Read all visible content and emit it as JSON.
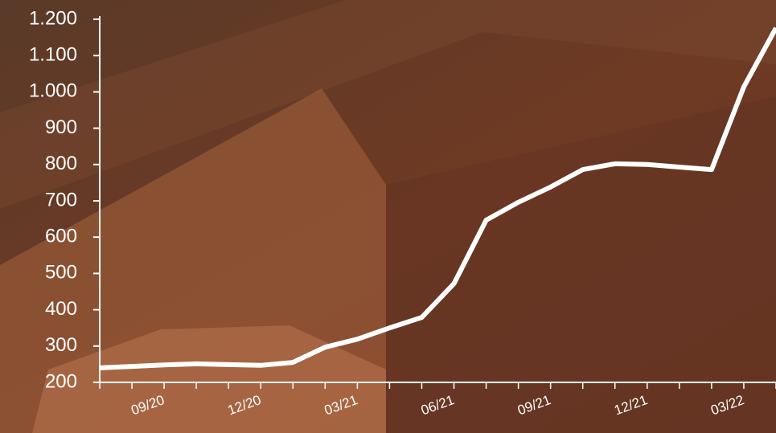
{
  "chart_data": {
    "type": "line",
    "categories": [
      null,
      null,
      "09/20",
      null,
      null,
      "12/20",
      null,
      null,
      "03/21",
      null,
      null,
      "06/21",
      null,
      null,
      "09/21",
      null,
      null,
      "12/21",
      null,
      null,
      "03/22",
      null
    ],
    "series": [
      {
        "color": "#ffffff",
        "values": [
          240,
          244,
          248,
          251,
          249,
          247,
          255,
          297,
          319,
          350,
          379,
          472,
          647,
          696,
          738,
          786,
          802,
          800,
          793,
          786,
          1014,
          1176
        ]
      }
    ],
    "ylim": [
      200,
      1200
    ],
    "yticks": [
      200,
      300,
      400,
      500,
      600,
      700,
      800,
      900,
      {
        "value": 1000,
        "label": "1.000"
      },
      {
        "value": 1100,
        "label": "1.100"
      },
      {
        "value": 1200,
        "label": "1.200"
      }
    ]
  }
}
